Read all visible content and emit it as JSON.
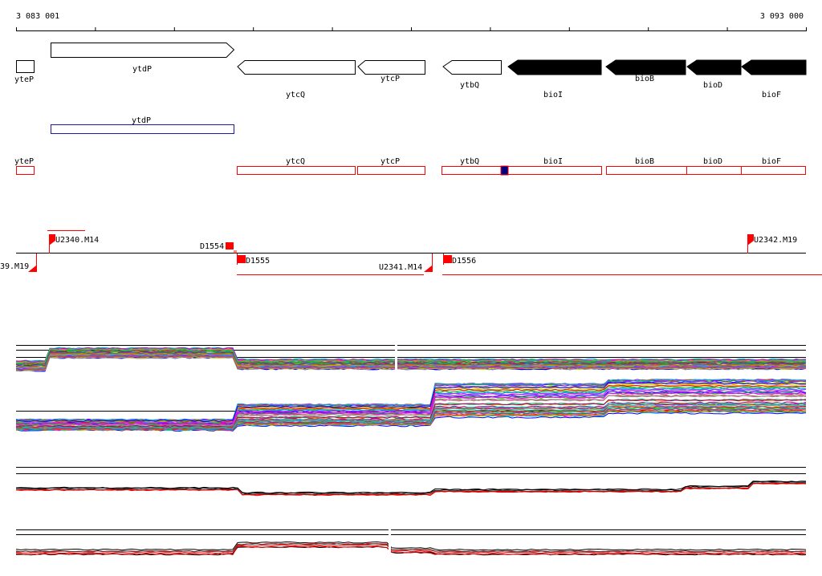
{
  "ruler": {
    "start_label": "3 083 001",
    "end_label": "3 093 000",
    "start": 3083001,
    "end": 3093000
  },
  "colors": {
    "forward_gene": "#ffffff",
    "reverse_gene_dark": "#000000",
    "outline": "#000000",
    "blue_box": "#1a1aa6",
    "red": "#ff0000",
    "navy": "#000080"
  },
  "genes": [
    {
      "label": "yteP",
      "strand": "plus",
      "fill": "white",
      "shape": "box"
    },
    {
      "label": "ytdP",
      "strand": "plus",
      "fill": "white",
      "shape": "arrow"
    },
    {
      "label": "ytcQ",
      "strand": "minus",
      "fill": "white",
      "shape": "arrow"
    },
    {
      "label": "ytcP",
      "strand": "minus",
      "fill": "white",
      "shape": "arrow"
    },
    {
      "label": "ytbQ",
      "strand": "minus",
      "fill": "white",
      "shape": "arrow"
    },
    {
      "label": "bioI",
      "strand": "minus",
      "fill": "black",
      "shape": "arrow"
    },
    {
      "label": "bioB",
      "strand": "minus",
      "fill": "black",
      "shape": "arrow"
    },
    {
      "label": "bioD",
      "strand": "minus",
      "fill": "black",
      "shape": "arrow"
    },
    {
      "label": "bioF",
      "strand": "minus",
      "fill": "black",
      "shape": "arrow"
    }
  ],
  "blue_track": {
    "label": "ytdP"
  },
  "red_track": [
    {
      "label": "yteP"
    },
    {
      "label": "ytcQ"
    },
    {
      "label": "ytcP"
    },
    {
      "label": "ytbQ"
    },
    {
      "label": "bioI"
    },
    {
      "label": "bioB"
    },
    {
      "label": "bioD"
    },
    {
      "label": "bioF"
    }
  ],
  "features": [
    {
      "label": "U2340.M14"
    },
    {
      "label": "D1554"
    },
    {
      "label": "D1555"
    },
    {
      "label": "U2341.M14"
    },
    {
      "label": "D1556"
    },
    {
      "label": "U2342.M19"
    },
    {
      "label": "39.M19"
    }
  ]
}
